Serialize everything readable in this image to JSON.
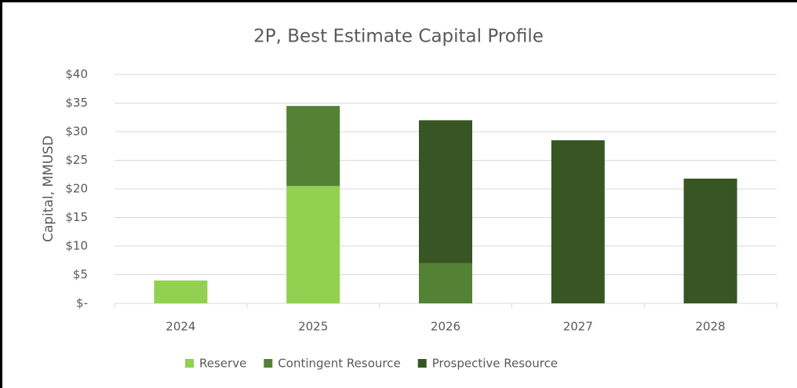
{
  "chart_data": {
    "type": "stacked-bar",
    "title": "2P, Best Estimate Capital Profile",
    "y_label": "Capital, MMUSD",
    "categories": [
      "2024",
      "2025",
      "2026",
      "2027",
      "2028"
    ],
    "series": [
      {
        "name": "Reserve",
        "color": "#92d050",
        "values": [
          4,
          20.5,
          0,
          0,
          0
        ]
      },
      {
        "name": "Contingent Resource",
        "color": "#548235",
        "values": [
          0,
          14,
          7,
          0,
          0
        ]
      },
      {
        "name": "Prospective Resource",
        "color": "#375623",
        "values": [
          0,
          0,
          25,
          28.5,
          21.8
        ]
      }
    ],
    "ylim": [
      0,
      40
    ],
    "yticks": [
      {
        "value": 0,
        "label": "$-"
      },
      {
        "value": 5,
        "label": "$5"
      },
      {
        "value": 10,
        "label": "$10"
      },
      {
        "value": 15,
        "label": "$15"
      },
      {
        "value": 20,
        "label": "$20"
      },
      {
        "value": 25,
        "label": "$25"
      },
      {
        "value": 30,
        "label": "$30"
      },
      {
        "value": 35,
        "label": "$35"
      },
      {
        "value": 40,
        "label": "$40"
      }
    ],
    "grid": true,
    "legend": "bottom"
  }
}
